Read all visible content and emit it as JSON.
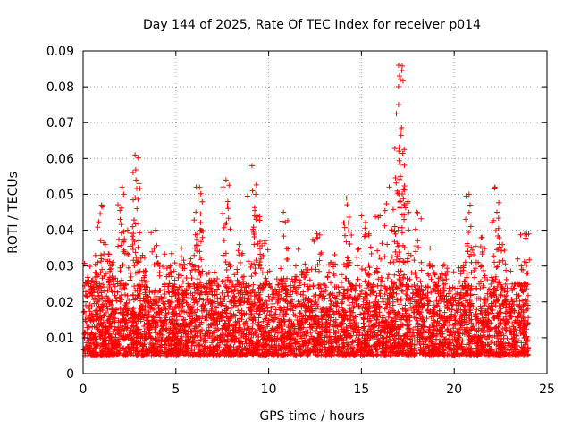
{
  "chart_data": {
    "type": "scatter",
    "title": "Day 144 of 2025, Rate Of TEC Index for receiver p014",
    "xlabel": "GPS time / hours",
    "ylabel": "ROTI / TECUs",
    "xlim": [
      0,
      25
    ],
    "ylim": [
      0,
      0.09
    ],
    "x_ticks": [
      "0",
      "5",
      "10",
      "15",
      "20",
      "25"
    ],
    "y_ticks": [
      "0",
      "0.01",
      "0.02",
      "0.03",
      "0.04",
      "0.05",
      "0.06",
      "0.07",
      "0.08",
      "0.09"
    ],
    "grid": true,
    "marker": "+",
    "color": "#ff0000",
    "time_range_hours": [
      0,
      24
    ],
    "baseline_band": [
      0.005,
      0.025
    ],
    "spikes": [
      {
        "x": 0.3,
        "y": 0.026
      },
      {
        "x": 0.8,
        "y": 0.031
      },
      {
        "x": 1.0,
        "y": 0.047
      },
      {
        "x": 1.2,
        "y": 0.036
      },
      {
        "x": 1.6,
        "y": 0.031
      },
      {
        "x": 2.0,
        "y": 0.043
      },
      {
        "x": 2.1,
        "y": 0.052
      },
      {
        "x": 2.4,
        "y": 0.04
      },
      {
        "x": 2.8,
        "y": 0.061
      },
      {
        "x": 2.85,
        "y": 0.054
      },
      {
        "x": 2.9,
        "y": 0.046
      },
      {
        "x": 3.2,
        "y": 0.033
      },
      {
        "x": 3.9,
        "y": 0.04
      },
      {
        "x": 4.7,
        "y": 0.03
      },
      {
        "x": 5.3,
        "y": 0.035
      },
      {
        "x": 5.8,
        "y": 0.032
      },
      {
        "x": 6.1,
        "y": 0.052
      },
      {
        "x": 6.2,
        "y": 0.049
      },
      {
        "x": 6.3,
        "y": 0.04
      },
      {
        "x": 6.9,
        "y": 0.026
      },
      {
        "x": 7.7,
        "y": 0.054
      },
      {
        "x": 7.8,
        "y": 0.048
      },
      {
        "x": 8.4,
        "y": 0.036
      },
      {
        "x": 9.1,
        "y": 0.058
      },
      {
        "x": 9.3,
        "y": 0.05
      },
      {
        "x": 9.35,
        "y": 0.044
      },
      {
        "x": 9.8,
        "y": 0.037
      },
      {
        "x": 10.8,
        "y": 0.045
      },
      {
        "x": 11.5,
        "y": 0.027
      },
      {
        "x": 12.0,
        "y": 0.029
      },
      {
        "x": 12.6,
        "y": 0.039
      },
      {
        "x": 13.4,
        "y": 0.031
      },
      {
        "x": 14.2,
        "y": 0.049
      },
      {
        "x": 14.3,
        "y": 0.042
      },
      {
        "x": 15.0,
        "y": 0.044
      },
      {
        "x": 15.4,
        "y": 0.039
      },
      {
        "x": 16.0,
        "y": 0.044
      },
      {
        "x": 16.5,
        "y": 0.052
      },
      {
        "x": 16.8,
        "y": 0.041
      },
      {
        "x": 17.0,
        "y": 0.086
      },
      {
        "x": 17.05,
        "y": 0.083
      },
      {
        "x": 17.1,
        "y": 0.082
      },
      {
        "x": 17.0,
        "y": 0.075
      },
      {
        "x": 17.15,
        "y": 0.068
      },
      {
        "x": 17.1,
        "y": 0.055
      },
      {
        "x": 17.5,
        "y": 0.048
      },
      {
        "x": 18.0,
        "y": 0.045
      },
      {
        "x": 18.7,
        "y": 0.035
      },
      {
        "x": 19.4,
        "y": 0.03
      },
      {
        "x": 20.5,
        "y": 0.03
      },
      {
        "x": 20.8,
        "y": 0.05
      },
      {
        "x": 20.9,
        "y": 0.041
      },
      {
        "x": 21.5,
        "y": 0.038
      },
      {
        "x": 22.2,
        "y": 0.052
      },
      {
        "x": 22.3,
        "y": 0.045
      },
      {
        "x": 22.6,
        "y": 0.036
      },
      {
        "x": 23.3,
        "y": 0.025
      },
      {
        "x": 23.8,
        "y": 0.039
      }
    ]
  }
}
